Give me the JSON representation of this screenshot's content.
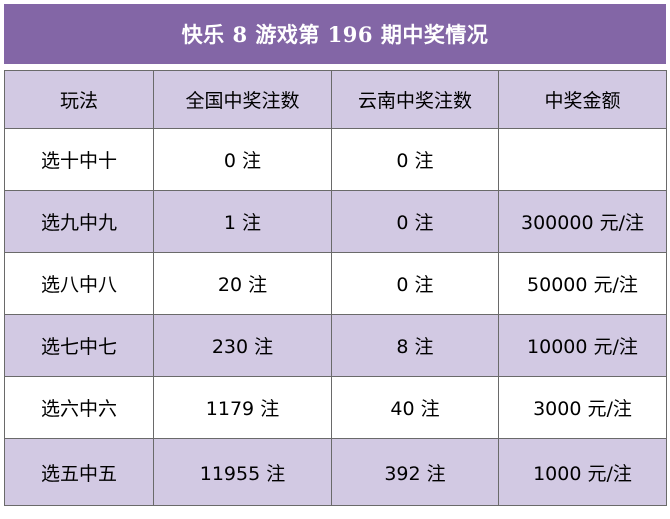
{
  "title": "快乐 8 游戏第 196 期中奖情况",
  "columns": [
    "玩法",
    "全国中奖注数",
    "云南中奖注数",
    "中奖金额"
  ],
  "rows": [
    {
      "play": "选十中十",
      "national": "0 注",
      "yunnan": "0 注",
      "prize": ""
    },
    {
      "play": "选九中九",
      "national": "1 注",
      "yunnan": "0 注",
      "prize": "300000 元/注"
    },
    {
      "play": "选八中八",
      "national": "20 注",
      "yunnan": "0 注",
      "prize": "50000 元/注"
    },
    {
      "play": "选七中七",
      "national": "230 注",
      "yunnan": "8 注",
      "prize": "10000 元/注"
    },
    {
      "play": "选六中六",
      "national": "1179 注",
      "yunnan": "40 注",
      "prize": "3000 元/注"
    },
    {
      "play": "选五中五",
      "national": "11955 注",
      "yunnan": "392 注",
      "prize": "1000 元/注"
    }
  ],
  "colors": {
    "title_bg": "#8366a6",
    "stripe": "#d2c9e3",
    "border": "#6a6a6a"
  }
}
